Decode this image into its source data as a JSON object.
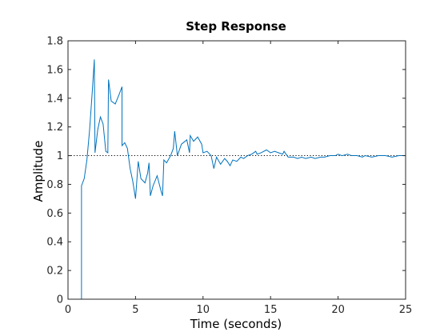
{
  "chart_data": {
    "type": "line",
    "title": "Step Response",
    "xlabel": "Time (seconds)",
    "ylabel": "Amplitude",
    "xlim": [
      0,
      25
    ],
    "ylim": [
      0,
      1.8
    ],
    "xticks": [
      0,
      5,
      10,
      15,
      20,
      25
    ],
    "yticks": [
      0,
      0.2,
      0.4,
      0.6,
      0.8,
      1,
      1.2,
      1.4,
      1.6,
      1.8
    ],
    "xtick_labels": [
      "0",
      "5",
      "10",
      "15",
      "20",
      "25"
    ],
    "ytick_labels": [
      "0",
      "0.2",
      "0.4",
      "0.6",
      "0.8",
      "1",
      "1.2",
      "1.4",
      "1.6",
      "1.8"
    ],
    "grid": false,
    "reference_line": {
      "y": 1,
      "style": "dotted",
      "color": "#000000"
    },
    "series_color": "#0072BD",
    "series": [
      {
        "x": [
          0,
          1.0,
          1.0,
          1.2,
          1.4,
          1.6,
          1.8,
          1.95,
          2.0,
          2.2,
          2.4,
          2.6,
          2.8,
          2.95,
          3.0,
          3.2,
          3.5,
          3.8,
          4.0,
          4.0,
          4.2,
          4.4,
          4.6,
          4.8,
          5.0,
          5.2,
          5.4,
          5.7,
          5.9,
          6.0,
          6.1,
          6.3,
          6.6,
          6.9,
          7.0,
          7.1,
          7.3,
          7.6,
          7.8,
          7.9,
          8.1,
          8.4,
          8.8,
          9.0,
          9.05,
          9.3,
          9.6,
          9.9,
          10.0,
          10.3,
          10.6,
          10.8,
          11.0,
          11.3,
          11.6,
          11.8,
          12.0,
          12.2,
          12.5,
          12.8,
          13.0,
          13.3,
          13.6,
          13.9,
          14.0,
          14.3,
          14.7,
          15.0,
          15.3,
          15.6,
          15.9,
          16.0,
          16.3,
          16.7,
          17.0,
          17.3,
          17.6,
          18.0,
          18.3,
          18.7,
          19.0,
          19.4,
          19.8,
          20.0,
          20.3,
          20.7,
          21.0,
          21.4,
          21.8,
          22.0,
          22.5,
          23.0,
          23.5,
          24.0,
          24.5,
          25.0
        ],
        "y": [
          0,
          0,
          0.79,
          0.84,
          0.97,
          1.18,
          1.45,
          1.67,
          1.02,
          1.18,
          1.27,
          1.22,
          1.03,
          1.02,
          1.53,
          1.38,
          1.36,
          1.43,
          1.48,
          1.07,
          1.09,
          1.05,
          0.91,
          0.82,
          0.7,
          0.96,
          0.84,
          0.81,
          0.88,
          0.95,
          0.72,
          0.79,
          0.86,
          0.75,
          0.72,
          0.97,
          0.95,
          1.0,
          1.05,
          1.17,
          1.0,
          1.08,
          1.11,
          1.02,
          1.14,
          1.1,
          1.13,
          1.08,
          1.02,
          1.03,
          1.0,
          0.91,
          0.99,
          0.94,
          0.98,
          0.96,
          0.93,
          0.97,
          0.96,
          0.99,
          0.98,
          1.0,
          1.01,
          1.03,
          1.01,
          1.02,
          1.04,
          1.02,
          1.03,
          1.02,
          1.01,
          1.03,
          0.99,
          0.99,
          0.98,
          0.99,
          0.98,
          0.99,
          0.98,
          0.99,
          0.99,
          1.0,
          1.0,
          1.01,
          1.0,
          1.01,
          1.0,
          1.0,
          0.99,
          1.0,
          0.99,
          1.0,
          1.0,
          0.99,
          1.0,
          1.0
        ]
      }
    ]
  }
}
